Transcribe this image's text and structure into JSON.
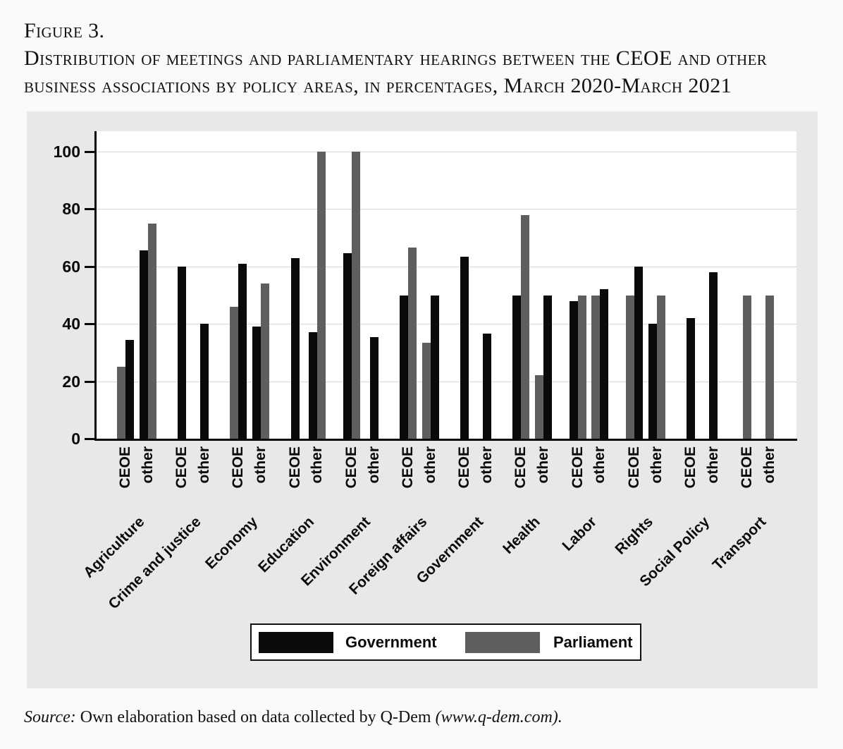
{
  "figure": {
    "label": "Figure 3.",
    "title_line1": "Distribution of meetings and parliamentary hearings between the CEOE and other",
    "title_line2": "business associations by policy areas, in percentages, March 2020-March 2021"
  },
  "source": {
    "prefix": "Source:",
    "body": " Own elaboration based on data collected by Q-Dem ",
    "suffix": "(www.q-dem.com)."
  },
  "chart_data": {
    "type": "bar",
    "title": "Distribution of meetings and parliamentary hearings between the CEOE and other business associations by policy areas, in percentages, March 2020-March 2021",
    "xlabel": "",
    "ylabel": "",
    "ylim": [
      0,
      100
    ],
    "yticks": [
      0,
      20,
      40,
      60,
      80,
      100
    ],
    "grid": true,
    "legend_position": "bottom",
    "tick_labels_per_group": [
      "CEOE",
      "other"
    ],
    "series": [
      {
        "name": "Government",
        "color": "#0a0a0a"
      },
      {
        "name": "Parliament",
        "color": "#5e5e5e"
      }
    ],
    "groups": [
      {
        "category": "Agriculture",
        "ticks": [
          {
            "label": "CEOE",
            "bars": [
              {
                "series": "Parliament",
                "value": 25
              },
              {
                "series": "Government",
                "value": 34.5
              }
            ]
          },
          {
            "label": "other",
            "bars": [
              {
                "series": "Government",
                "value": 65.5
              },
              {
                "series": "Parliament",
                "value": 75
              }
            ]
          }
        ]
      },
      {
        "category": "Crime and justice",
        "ticks": [
          {
            "label": "CEOE",
            "bars": [
              {
                "series": "Government",
                "value": 60
              }
            ]
          },
          {
            "label": "other",
            "bars": [
              {
                "series": "Government",
                "value": 40
              }
            ]
          }
        ]
      },
      {
        "category": "Economy",
        "ticks": [
          {
            "label": "CEOE",
            "bars": [
              {
                "series": "Parliament",
                "value": 46
              },
              {
                "series": "Government",
                "value": 61
              }
            ]
          },
          {
            "label": "other",
            "bars": [
              {
                "series": "Government",
                "value": 39
              },
              {
                "series": "Parliament",
                "value": 54
              }
            ]
          }
        ]
      },
      {
        "category": "Education",
        "ticks": [
          {
            "label": "CEOE",
            "bars": [
              {
                "series": "Government",
                "value": 63
              }
            ]
          },
          {
            "label": "other",
            "bars": [
              {
                "series": "Government",
                "value": 37
              },
              {
                "series": "Parliament",
                "value": 100
              }
            ]
          }
        ]
      },
      {
        "category": "Environment",
        "ticks": [
          {
            "label": "CEOE",
            "bars": [
              {
                "series": "Government",
                "value": 64.5
              },
              {
                "series": "Parliament",
                "value": 100
              }
            ]
          },
          {
            "label": "other",
            "bars": [
              {
                "series": "Government",
                "value": 35.5
              }
            ]
          }
        ]
      },
      {
        "category": "Foreign affairs",
        "ticks": [
          {
            "label": "CEOE",
            "bars": [
              {
                "series": "Government",
                "value": 50
              },
              {
                "series": "Parliament",
                "value": 66.7
              }
            ]
          },
          {
            "label": "other",
            "bars": [
              {
                "series": "Parliament",
                "value": 33.3
              },
              {
                "series": "Government",
                "value": 50
              }
            ]
          }
        ]
      },
      {
        "category": "Government",
        "ticks": [
          {
            "label": "CEOE",
            "bars": [
              {
                "series": "Government",
                "value": 63.5
              }
            ]
          },
          {
            "label": "other",
            "bars": [
              {
                "series": "Government",
                "value": 36.5
              }
            ]
          }
        ]
      },
      {
        "category": "Health",
        "ticks": [
          {
            "label": "CEOE",
            "bars": [
              {
                "series": "Government",
                "value": 50
              },
              {
                "series": "Parliament",
                "value": 77.8
              }
            ]
          },
          {
            "label": "other",
            "bars": [
              {
                "series": "Parliament",
                "value": 22.2
              },
              {
                "series": "Government",
                "value": 50
              }
            ]
          }
        ]
      },
      {
        "category": "Labor",
        "ticks": [
          {
            "label": "CEOE",
            "bars": [
              {
                "series": "Government",
                "value": 48
              },
              {
                "series": "Parliament",
                "value": 50
              }
            ]
          },
          {
            "label": "other",
            "bars": [
              {
                "series": "Parliament",
                "value": 50
              },
              {
                "series": "Government",
                "value": 52
              }
            ]
          }
        ]
      },
      {
        "category": "Rights",
        "ticks": [
          {
            "label": "CEOE",
            "bars": [
              {
                "series": "Parliament",
                "value": 50
              },
              {
                "series": "Government",
                "value": 60
              }
            ]
          },
          {
            "label": "other",
            "bars": [
              {
                "series": "Government",
                "value": 40
              },
              {
                "series": "Parliament",
                "value": 50
              }
            ]
          }
        ]
      },
      {
        "category": "Social Policy",
        "ticks": [
          {
            "label": "CEOE",
            "bars": [
              {
                "series": "Government",
                "value": 42
              }
            ]
          },
          {
            "label": "other",
            "bars": [
              {
                "series": "Government",
                "value": 58
              }
            ]
          }
        ]
      },
      {
        "category": "Transport",
        "ticks": [
          {
            "label": "CEOE",
            "bars": [
              {
                "series": "Parliament",
                "value": 50
              }
            ]
          },
          {
            "label": "other",
            "bars": [
              {
                "series": "Parliament",
                "value": 50
              }
            ]
          }
        ]
      }
    ]
  }
}
